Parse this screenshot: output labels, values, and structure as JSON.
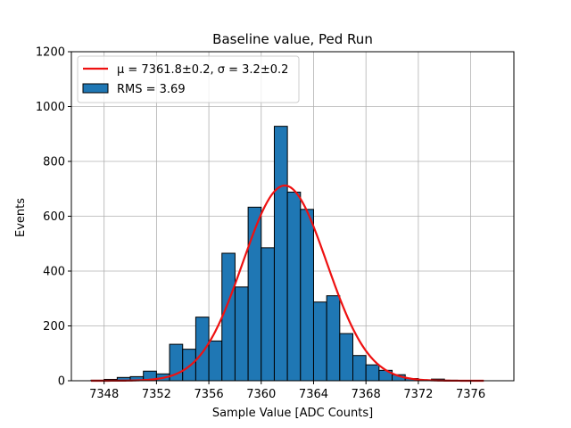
{
  "chart_data": {
    "type": "bar",
    "title": "Baseline value, Ped Run",
    "xlabel": "Sample Value [ADC Counts]",
    "ylabel": "Events",
    "xlim": [
      7345.5,
      7379.3
    ],
    "ylim": [
      0,
      1200
    ],
    "xticks": [
      7348,
      7352,
      7356,
      7360,
      7364,
      7368,
      7372,
      7376
    ],
    "yticks": [
      0,
      200,
      400,
      600,
      800,
      1000,
      1200
    ],
    "grid": true,
    "legend_position": "top-left",
    "bin_width": 1,
    "bins": [
      {
        "left": 7347.0,
        "value": 2
      },
      {
        "left": 7348.0,
        "value": 5
      },
      {
        "left": 7349.0,
        "value": 12
      },
      {
        "left": 7350.0,
        "value": 15
      },
      {
        "left": 7351.0,
        "value": 35
      },
      {
        "left": 7352.0,
        "value": 25
      },
      {
        "left": 7353.0,
        "value": 133
      },
      {
        "left": 7354.0,
        "value": 115
      },
      {
        "left": 7355.0,
        "value": 232
      },
      {
        "left": 7356.0,
        "value": 145
      },
      {
        "left": 7357.0,
        "value": 465
      },
      {
        "left": 7358.0,
        "value": 342
      },
      {
        "left": 7359.0,
        "value": 633
      },
      {
        "left": 7360.0,
        "value": 485
      },
      {
        "left": 7361.0,
        "value": 928
      },
      {
        "left": 7362.0,
        "value": 688
      },
      {
        "left": 7363.0,
        "value": 625
      },
      {
        "left": 7364.0,
        "value": 287
      },
      {
        "left": 7365.0,
        "value": 310
      },
      {
        "left": 7366.0,
        "value": 172
      },
      {
        "left": 7367.0,
        "value": 92
      },
      {
        "left": 7368.0,
        "value": 58
      },
      {
        "left": 7369.0,
        "value": 38
      },
      {
        "left": 7370.0,
        "value": 22
      },
      {
        "left": 7371.0,
        "value": 8
      },
      {
        "left": 7372.0,
        "value": 3
      },
      {
        "left": 7373.0,
        "value": 6
      },
      {
        "left": 7374.0,
        "value": 2
      },
      {
        "left": 7375.0,
        "value": 1
      }
    ],
    "fit": {
      "mu": 7361.8,
      "sigma": 3.2,
      "amplitude": 712,
      "x_range": [
        7347.0,
        7377.0
      ],
      "color": "#ee1111"
    },
    "bar_color": "#1f77b4",
    "series": [
      {
        "name": "fit",
        "label_text": "μ = 7361.8±0.2, σ = 3.2±0.2",
        "color": "#ee1111"
      },
      {
        "name": "hist",
        "label_text": "RMS = 3.69",
        "color": "#1f77b4"
      }
    ]
  }
}
